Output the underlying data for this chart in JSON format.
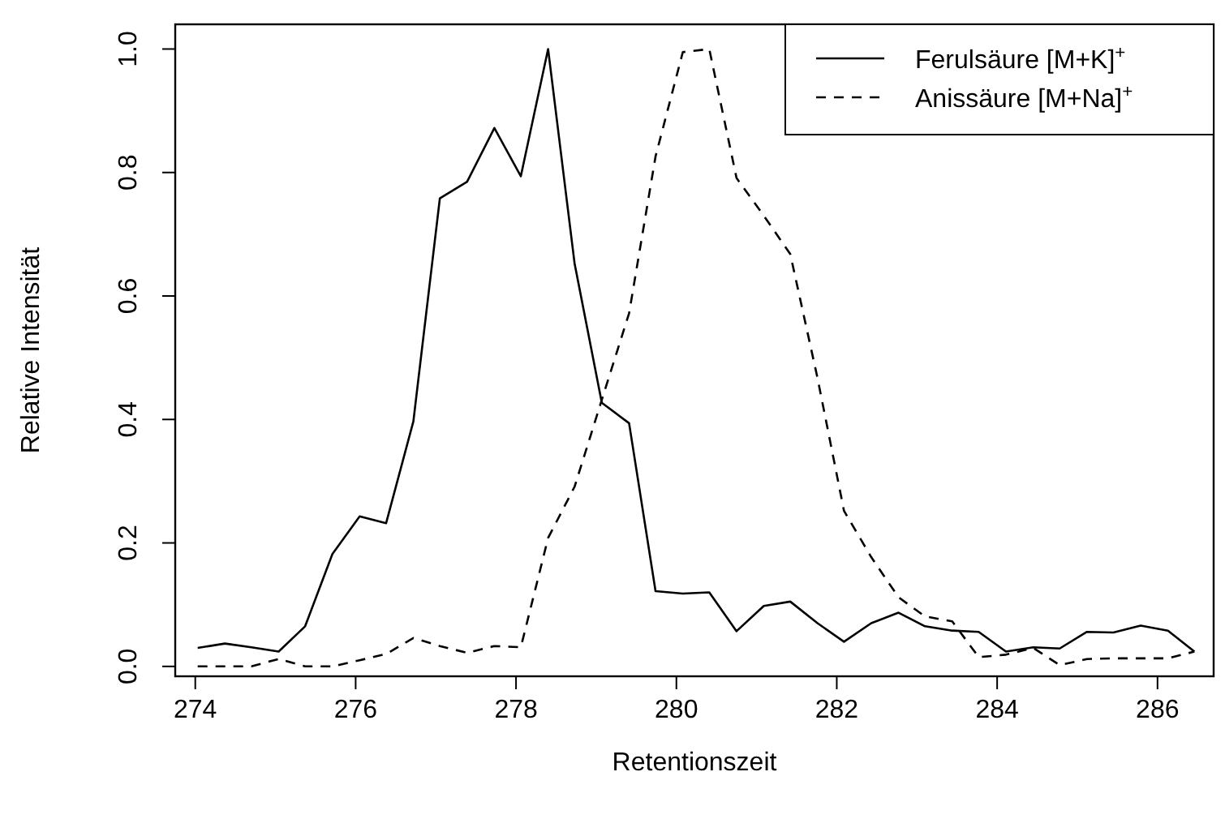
{
  "chart_data": {
    "type": "line",
    "xlabel": "Retentionszeit",
    "ylabel": "Relative Intensität",
    "x": [
      274.03,
      274.37,
      274.7,
      275.04,
      275.37,
      275.71,
      276.05,
      276.38,
      276.72,
      277.05,
      277.39,
      277.73,
      278.06,
      278.4,
      278.73,
      279.07,
      279.41,
      279.74,
      280.08,
      280.41,
      280.75,
      281.09,
      281.42,
      281.76,
      282.09,
      282.43,
      282.77,
      283.1,
      283.44,
      283.77,
      284.11,
      284.45,
      284.78,
      285.12,
      285.45,
      285.79,
      286.13,
      286.46
    ],
    "series": [
      {
        "name": "Ferulsäure [M+K]$^{+}$",
        "color": "#000000",
        "line_style": "solid",
        "values": [
          0.03,
          0.037,
          0.031,
          0.024,
          0.065,
          0.182,
          0.243,
          0.232,
          0.397,
          0.758,
          0.785,
          0.872,
          0.794,
          1.0,
          0.653,
          0.427,
          0.394,
          0.122,
          0.118,
          0.12,
          0.057,
          0.098,
          0.105,
          0.07,
          0.04,
          0.07,
          0.087,
          0.065,
          0.058,
          0.056,
          0.024,
          0.031,
          0.029,
          0.056,
          0.055,
          0.066,
          0.058,
          0.024
        ]
      },
      {
        "name": "Anissäure [M+Na]$^{+}$",
        "color": "#000000",
        "line_style": "dashed",
        "values": [
          0.0,
          0.0,
          0.0,
          0.012,
          0.0,
          0.0,
          0.01,
          0.02,
          0.046,
          0.033,
          0.022,
          0.033,
          0.031,
          0.208,
          0.291,
          0.432,
          0.572,
          0.826,
          0.995,
          1.0,
          0.791,
          0.73,
          0.668,
          0.467,
          0.252,
          0.177,
          0.112,
          0.081,
          0.073,
          0.015,
          0.019,
          0.03,
          0.002,
          0.012,
          0.013,
          0.013,
          0.013,
          0.024
        ]
      }
    ],
    "xlim": [
      273.75,
      286.7
    ],
    "ylim": [
      -0.016,
      1.04
    ],
    "xticks": [
      274,
      276,
      278,
      280,
      282,
      284,
      286
    ],
    "yticks": [
      {
        "value": 0,
        "label": "0.0"
      },
      {
        "value": 0.2,
        "label": "0.2"
      },
      {
        "value": 0.4,
        "label": "0.4"
      },
      {
        "value": 0.6,
        "label": "0.6"
      },
      {
        "value": 0.8,
        "label": "0.8"
      },
      {
        "value": 1,
        "label": "1.0"
      }
    ],
    "grid": false,
    "legend": "top right"
  }
}
